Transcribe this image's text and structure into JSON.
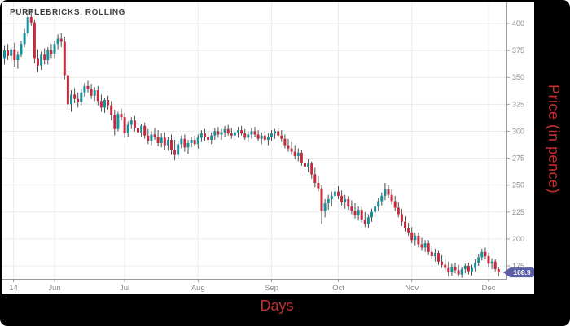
{
  "chart_data": {
    "type": "candlestick",
    "title": "PURPLEBRICKS, ROLLING",
    "xlabel": "Days",
    "ylabel": "Price (in pence)",
    "last_price": 168.9,
    "last_price_label": "168.9",
    "y_ticks": [
      400,
      375,
      350,
      325,
      300,
      275,
      250,
      225,
      200,
      175
    ],
    "ylim": [
      160,
      415
    ],
    "x_ticks": [
      {
        "label": "14",
        "index": 2.7
      },
      {
        "label": "Jun",
        "index": 15
      },
      {
        "label": "Jul",
        "index": 36
      },
      {
        "label": "Aug",
        "index": 58
      },
      {
        "label": "Sep",
        "index": 80
      },
      {
        "label": "Oct",
        "index": 100
      },
      {
        "label": "Nov",
        "index": 122
      },
      {
        "label": "Dec",
        "index": 145
      }
    ],
    "candles": [
      [
        368,
        380,
        362,
        375
      ],
      [
        375,
        381,
        366,
        370
      ],
      [
        370,
        378,
        365,
        376
      ],
      [
        376,
        382,
        360,
        366
      ],
      [
        366,
        374,
        358,
        371
      ],
      [
        371,
        384,
        369,
        381
      ],
      [
        381,
        395,
        378,
        391
      ],
      [
        391,
        410,
        388,
        406
      ],
      [
        406,
        413,
        398,
        401
      ],
      [
        401,
        404,
        363,
        368
      ],
      [
        368,
        376,
        355,
        361
      ],
      [
        361,
        374,
        357,
        371
      ],
      [
        371,
        377,
        362,
        366
      ],
      [
        366,
        378,
        362,
        375
      ],
      [
        375,
        381,
        368,
        372
      ],
      [
        372,
        384,
        368,
        381
      ],
      [
        381,
        390,
        376,
        386
      ],
      [
        386,
        391,
        378,
        383
      ],
      [
        383,
        388,
        348,
        352
      ],
      [
        352,
        356,
        320,
        325
      ],
      [
        325,
        338,
        318,
        334
      ],
      [
        334,
        340,
        326,
        330
      ],
      [
        330,
        336,
        322,
        327
      ],
      [
        327,
        339,
        324,
        336
      ],
      [
        336,
        345,
        332,
        342
      ],
      [
        342,
        347,
        336,
        339
      ],
      [
        339,
        344,
        330,
        333
      ],
      [
        333,
        341,
        328,
        338
      ],
      [
        338,
        342,
        324,
        328
      ],
      [
        328,
        334,
        318,
        322
      ],
      [
        322,
        331,
        317,
        329
      ],
      [
        329,
        333,
        320,
        324
      ],
      [
        324,
        328,
        310,
        315
      ],
      [
        315,
        320,
        296,
        302
      ],
      [
        302,
        318,
        300,
        316
      ],
      [
        316,
        321,
        310,
        313
      ],
      [
        313,
        317,
        294,
        298
      ],
      [
        298,
        309,
        295,
        306
      ],
      [
        306,
        313,
        302,
        310
      ],
      [
        310,
        314,
        300,
        303
      ],
      [
        303,
        308,
        296,
        299
      ],
      [
        299,
        307,
        295,
        305
      ],
      [
        305,
        308,
        293,
        296
      ],
      [
        296,
        302,
        288,
        291
      ],
      [
        291,
        300,
        287,
        297
      ],
      [
        297,
        303,
        292,
        295
      ],
      [
        295,
        301,
        286,
        289
      ],
      [
        289,
        298,
        285,
        294
      ],
      [
        294,
        299,
        283,
        287
      ],
      [
        287,
        295,
        282,
        292
      ],
      [
        292,
        297,
        278,
        283
      ],
      [
        283,
        292,
        273,
        278
      ],
      [
        278,
        291,
        275,
        288
      ],
      [
        288,
        296,
        284,
        293
      ],
      [
        293,
        297,
        281,
        285
      ],
      [
        285,
        292,
        279,
        289
      ],
      [
        289,
        295,
        285,
        292
      ],
      [
        292,
        296,
        286,
        288
      ],
      [
        288,
        297,
        284,
        294
      ],
      [
        294,
        301,
        290,
        298
      ],
      [
        298,
        302,
        291,
        295
      ],
      [
        295,
        300,
        289,
        292
      ],
      [
        292,
        299,
        288,
        296
      ],
      [
        296,
        303,
        292,
        300
      ],
      [
        300,
        304,
        294,
        297
      ],
      [
        297,
        302,
        292,
        299
      ],
      [
        299,
        305,
        295,
        302
      ],
      [
        302,
        306,
        296,
        298
      ],
      [
        298,
        303,
        293,
        296
      ],
      [
        296,
        301,
        291,
        299
      ],
      [
        299,
        304,
        294,
        301
      ],
      [
        301,
        305,
        296,
        298
      ],
      [
        298,
        302,
        292,
        294
      ],
      [
        294,
        300,
        290,
        297
      ],
      [
        297,
        303,
        293,
        300
      ],
      [
        300,
        304,
        295,
        297
      ],
      [
        297,
        301,
        291,
        293
      ],
      [
        293,
        299,
        288,
        296
      ],
      [
        296,
        300,
        290,
        292
      ],
      [
        292,
        298,
        287,
        295
      ],
      [
        295,
        301,
        291,
        298
      ],
      [
        298,
        302,
        293,
        300
      ],
      [
        300,
        303,
        294,
        296
      ],
      [
        296,
        301,
        290,
        293
      ],
      [
        293,
        297,
        284,
        287
      ],
      [
        287,
        293,
        281,
        284
      ],
      [
        284,
        290,
        278,
        281
      ],
      [
        281,
        287,
        274,
        277
      ],
      [
        277,
        284,
        272,
        280
      ],
      [
        280,
        283,
        268,
        271
      ],
      [
        271,
        277,
        264,
        267
      ],
      [
        267,
        274,
        262,
        270
      ],
      [
        270,
        272,
        256,
        260
      ],
      [
        260,
        266,
        248,
        252
      ],
      [
        252,
        259,
        244,
        247
      ],
      [
        247,
        250,
        214,
        226
      ],
      [
        226,
        237,
        220,
        233
      ],
      [
        233,
        241,
        227,
        237
      ],
      [
        237,
        244,
        230,
        240
      ],
      [
        240,
        248,
        235,
        244
      ],
      [
        244,
        249,
        237,
        240
      ],
      [
        240,
        245,
        231,
        234
      ],
      [
        234,
        241,
        228,
        237
      ],
      [
        237,
        240,
        227,
        230
      ],
      [
        230,
        236,
        223,
        226
      ],
      [
        226,
        233,
        219,
        222
      ],
      [
        222,
        230,
        217,
        227
      ],
      [
        227,
        230,
        215,
        218
      ],
      [
        218,
        225,
        211,
        214
      ],
      [
        214,
        223,
        210,
        220
      ],
      [
        220,
        228,
        216,
        225
      ],
      [
        225,
        233,
        221,
        230
      ],
      [
        230,
        238,
        226,
        235
      ],
      [
        235,
        243,
        231,
        240
      ],
      [
        240,
        252,
        236,
        246
      ],
      [
        246,
        250,
        238,
        241
      ],
      [
        241,
        246,
        232,
        235
      ],
      [
        235,
        240,
        226,
        229
      ],
      [
        229,
        234,
        220,
        223
      ],
      [
        223,
        228,
        212,
        216
      ],
      [
        216,
        221,
        207,
        210
      ],
      [
        210,
        215,
        203,
        206
      ],
      [
        206,
        211,
        196,
        199
      ],
      [
        199,
        206,
        194,
        203
      ],
      [
        203,
        206,
        192,
        195
      ],
      [
        195,
        201,
        189,
        192
      ],
      [
        192,
        199,
        188,
        196
      ],
      [
        196,
        199,
        185,
        188
      ],
      [
        188,
        194,
        181,
        184
      ],
      [
        184,
        191,
        179,
        187
      ],
      [
        187,
        189,
        176,
        179
      ],
      [
        179,
        185,
        173,
        176
      ],
      [
        176,
        182,
        170,
        173
      ],
      [
        173,
        179,
        165,
        169
      ],
      [
        169,
        177,
        166,
        174
      ],
      [
        174,
        178,
        168,
        171
      ],
      [
        171,
        176,
        165,
        167
      ],
      [
        167,
        174,
        164,
        172
      ],
      [
        172,
        177,
        168,
        175
      ],
      [
        175,
        178,
        167,
        170
      ],
      [
        170,
        176,
        166,
        173
      ],
      [
        173,
        181,
        170,
        178
      ],
      [
        178,
        186,
        175,
        183
      ],
      [
        183,
        191,
        180,
        188
      ],
      [
        188,
        192,
        181,
        184
      ],
      [
        184,
        187,
        174,
        177
      ],
      [
        177,
        182,
        172,
        179
      ],
      [
        179,
        181,
        170,
        172
      ],
      [
        172,
        174,
        165,
        168.9
      ]
    ]
  },
  "colors": {
    "up_candle": "#15919c",
    "down_candle": "#c9293c",
    "wick": "#4d4d4d",
    "grid": "#ececec",
    "axis_line": "#9b9b9b",
    "tick_text": "#8c8c8c",
    "title_text": "#3f3f3f",
    "axis_title_text": "#c62f2f",
    "badge_bg": "#5a5fa8",
    "badge_text": "#ffffff",
    "frame_bg": "#000000",
    "plot_bg": "#ffffff"
  }
}
